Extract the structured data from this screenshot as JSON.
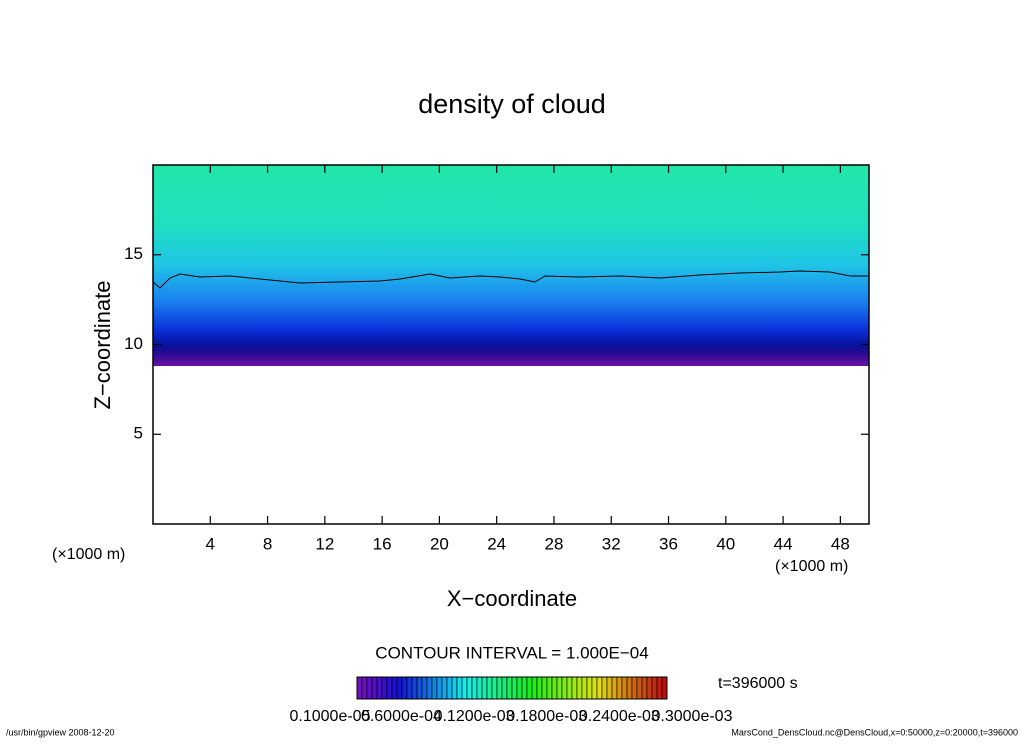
{
  "chart_data": {
    "type": "contour",
    "title": "density of cloud",
    "xlabel": "X−coordinate",
    "ylabel": "Z−coordinate",
    "x_unit_label": "(×1000 m)",
    "y_unit_label": "(×1000 m)",
    "xlim": [
      0,
      50
    ],
    "ylim": [
      0,
      20
    ],
    "xticks": [
      4,
      8,
      12,
      16,
      20,
      24,
      28,
      32,
      36,
      40,
      44,
      48
    ],
    "yticks": [
      5,
      10,
      15
    ],
    "contour_interval": "CONTOUR INTERVAL = 1.000E−04",
    "time_label": "t=396000 s",
    "clim": [
      1e-06,
      0.0003
    ],
    "cticks": [
      {
        "value": 1e-06,
        "label": "0.1000e-05"
      },
      {
        "value": 6e-05,
        "label": "0.6000e-04"
      },
      {
        "value": 0.00012,
        "label": "0.1200e-03"
      },
      {
        "value": 0.00018,
        "label": "0.1800e-03"
      },
      {
        "value": 0.00024,
        "label": "0.2400e-03"
      },
      {
        "value": 0.0003,
        "label": "0.3000e-03"
      }
    ]
  },
  "footer": {
    "left": "/usr/bin/gpview   2008-12-20",
    "right": "MarsCond_DensCloud.nc@DensCloud,x=0:50000,z=0:20000,t=396000"
  }
}
